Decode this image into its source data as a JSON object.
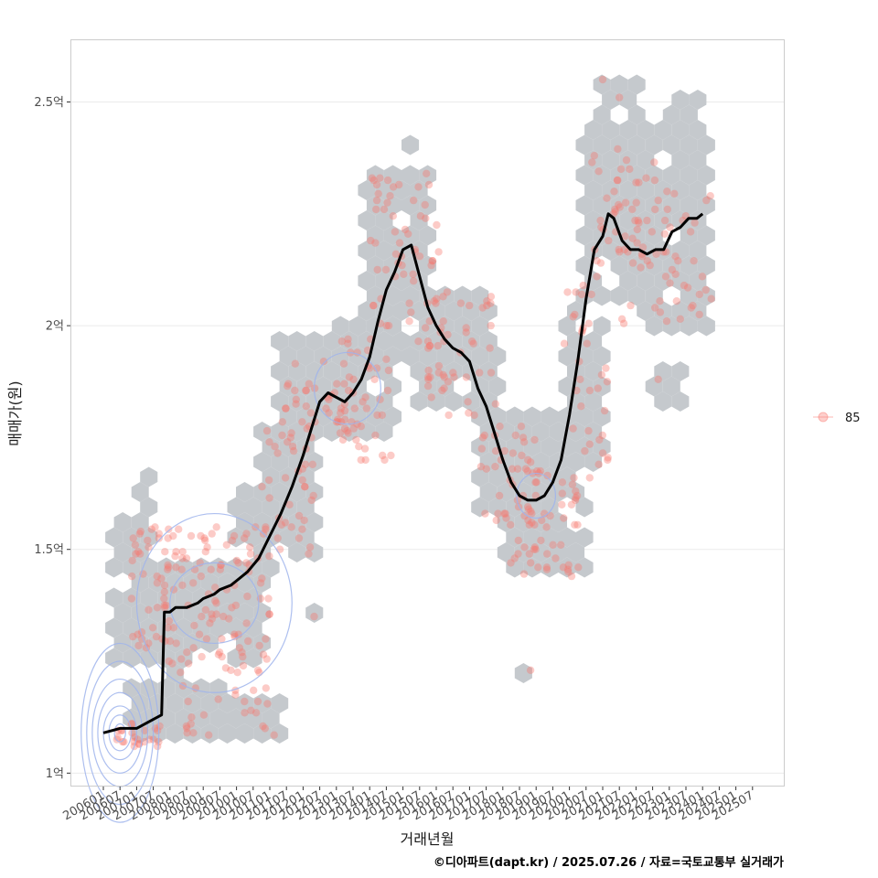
{
  "chart_data": {
    "type": "scatter",
    "ylabel": "매매가(원)",
    "xlabel": "거래년월",
    "caption": "©디아파트(dapt.kr) / 2025.07.26 / 자료=국토교통부 실거래가",
    "legend": {
      "placement": "right",
      "entries": [
        {
          "label": "85",
          "color": "#f8766d"
        }
      ]
    },
    "ylim": [
      0.97,
      2.64
    ],
    "xlim": [
      0,
      240
    ],
    "y_ticks": [
      {
        "value": 1.0,
        "label": "1억"
      },
      {
        "value": 1.5,
        "label": "1.5억"
      },
      {
        "value": 2.0,
        "label": "2억"
      },
      {
        "value": 2.5,
        "label": "2.5억"
      }
    ],
    "x_ticks": [
      "200601",
      "200607",
      "200701",
      "200707",
      "200801",
      "200807",
      "200901",
      "200907",
      "201001",
      "201007",
      "201101",
      "201107",
      "201201",
      "201207",
      "201301",
      "201307",
      "201401",
      "201407",
      "201501",
      "201507",
      "201601",
      "201607",
      "201701",
      "201707",
      "201801",
      "201807",
      "201901",
      "201907",
      "202001",
      "202007",
      "202101",
      "202107",
      "202201",
      "202207",
      "202301",
      "202307",
      "202401",
      "202407",
      "202501",
      "202507"
    ],
    "colors": {
      "hex": "#c5c9cd",
      "point": "#f8766d",
      "line": "#000000",
      "contour": "#9fb4ec",
      "grid": "#ebebeb",
      "panel_border": "#cccccc"
    },
    "trend_line": {
      "name": "moving average",
      "points": [
        [
          0,
          1.09
        ],
        [
          6,
          1.1
        ],
        [
          12,
          1.1
        ],
        [
          18,
          1.12
        ],
        [
          21,
          1.13
        ],
        [
          22,
          1.36
        ],
        [
          24,
          1.36
        ],
        [
          26,
          1.37
        ],
        [
          30,
          1.37
        ],
        [
          34,
          1.38
        ],
        [
          36,
          1.39
        ],
        [
          40,
          1.4
        ],
        [
          42,
          1.41
        ],
        [
          46,
          1.42
        ],
        [
          48,
          1.43
        ],
        [
          52,
          1.45
        ],
        [
          56,
          1.48
        ],
        [
          60,
          1.53
        ],
        [
          64,
          1.58
        ],
        [
          68,
          1.64
        ],
        [
          72,
          1.71
        ],
        [
          75,
          1.77
        ],
        [
          78,
          1.83
        ],
        [
          81,
          1.85
        ],
        [
          84,
          1.84
        ],
        [
          87,
          1.83
        ],
        [
          90,
          1.85
        ],
        [
          93,
          1.88
        ],
        [
          96,
          1.93
        ],
        [
          99,
          2.01
        ],
        [
          102,
          2.08
        ],
        [
          105,
          2.12
        ],
        [
          108,
          2.17
        ],
        [
          111,
          2.18
        ],
        [
          114,
          2.11
        ],
        [
          117,
          2.04
        ],
        [
          120,
          2.0
        ],
        [
          123,
          1.97
        ],
        [
          126,
          1.95
        ],
        [
          129,
          1.94
        ],
        [
          132,
          1.92
        ],
        [
          135,
          1.86
        ],
        [
          138,
          1.82
        ],
        [
          141,
          1.76
        ],
        [
          144,
          1.7
        ],
        [
          147,
          1.65
        ],
        [
          150,
          1.62
        ],
        [
          153,
          1.61
        ],
        [
          156,
          1.61
        ],
        [
          159,
          1.62
        ],
        [
          162,
          1.65
        ],
        [
          165,
          1.7
        ],
        [
          168,
          1.8
        ],
        [
          171,
          1.92
        ],
        [
          174,
          2.06
        ],
        [
          177,
          2.17
        ],
        [
          180,
          2.2
        ],
        [
          182,
          2.25
        ],
        [
          184,
          2.24
        ],
        [
          187,
          2.19
        ],
        [
          190,
          2.17
        ],
        [
          193,
          2.17
        ],
        [
          196,
          2.16
        ],
        [
          199,
          2.17
        ],
        [
          202,
          2.17
        ],
        [
          205,
          2.21
        ],
        [
          208,
          2.22
        ],
        [
          211,
          2.24
        ],
        [
          214,
          2.24
        ],
        [
          216,
          2.25
        ]
      ]
    },
    "contours": [
      {
        "cx": 6,
        "cy": 1.09,
        "rx": [
          2,
          4,
          6,
          8,
          10,
          12,
          14
        ],
        "ry": [
          0.02,
          0.04,
          0.06,
          0.09,
          0.12,
          0.16,
          0.2
        ]
      },
      {
        "cx": 40,
        "cy": 1.38,
        "rx": [
          16,
          28
        ],
        "ry": [
          0.09,
          0.2
        ]
      },
      {
        "cx": 88,
        "cy": 1.86,
        "rx": [
          12
        ],
        "ry": [
          0.08
        ]
      },
      {
        "cx": 156,
        "cy": 1.62,
        "rx": [
          7
        ],
        "ry": [
          0.05
        ]
      }
    ],
    "point_clusters": [
      {
        "x": [
          4,
          22
        ],
        "y": [
          1.04,
          1.12
        ],
        "n": 25
      },
      {
        "x": [
          10,
          24
        ],
        "y": [
          1.28,
          1.55
        ],
        "n": 40
      },
      {
        "x": [
          22,
          60
        ],
        "y": [
          1.22,
          1.55
        ],
        "n": 110
      },
      {
        "x": [
          28,
          62
        ],
        "y": [
          1.08,
          1.2
        ],
        "n": 25
      },
      {
        "x": [
          56,
          76
        ],
        "y": [
          1.5,
          1.8
        ],
        "n": 35
      },
      {
        "x": [
          64,
          92
        ],
        "y": [
          1.72,
          1.95
        ],
        "n": 45
      },
      {
        "x": [
          84,
          104
        ],
        "y": [
          1.7,
          1.98
        ],
        "n": 40
      },
      {
        "x": [
          96,
          122
        ],
        "y": [
          1.95,
          2.35
        ],
        "n": 60
      },
      {
        "x": [
          116,
          142
        ],
        "y": [
          1.8,
          2.08
        ],
        "n": 50
      },
      {
        "x": [
          136,
          158
        ],
        "y": [
          1.55,
          1.78
        ],
        "n": 40
      },
      {
        "x": [
          146,
          172
        ],
        "y": [
          1.44,
          1.68
        ],
        "n": 55
      },
      {
        "x": [
          166,
          182
        ],
        "y": [
          1.65,
          2.1
        ],
        "n": 35
      },
      {
        "x": [
          176,
          200
        ],
        "y": [
          2.1,
          2.4
        ],
        "n": 45
      },
      {
        "x": [
          186,
          220
        ],
        "y": [
          2.0,
          2.3
        ],
        "n": 50
      }
    ],
    "outlier_points": [
      [
        74,
        1.49
      ],
      [
        76,
        1.35
      ],
      [
        154,
        1.23
      ],
      [
        200,
        1.88
      ],
      [
        186,
        2.51
      ],
      [
        180,
        2.55
      ]
    ],
    "hex_regions": [
      {
        "x": [
          6,
          20
        ],
        "y": [
          1.46,
          1.55
        ]
      },
      {
        "x": [
          6,
          60
        ],
        "y": [
          1.26,
          1.46
        ]
      },
      {
        "x": [
          12,
          42
        ],
        "y": [
          1.08,
          1.2
        ]
      },
      {
        "x": [
          14,
          18
        ],
        "y": [
          1.6,
          1.66
        ]
      },
      {
        "x": [
          38,
          66
        ],
        "y": [
          1.08,
          1.16
        ]
      },
      {
        "x": [
          50,
          64
        ],
        "y": [
          1.45,
          1.62
        ]
      },
      {
        "x": [
          58,
          74
        ],
        "y": [
          1.5,
          1.75
        ]
      },
      {
        "x": [
          64,
          90
        ],
        "y": [
          1.75,
          1.95
        ]
      },
      {
        "x": [
          84,
          108
        ],
        "y": [
          1.75,
          2.0
        ]
      },
      {
        "x": [
          96,
          120
        ],
        "y": [
          1.95,
          2.35
        ]
      },
      {
        "x": [
          112,
          140
        ],
        "y": [
          1.88,
          2.05
        ]
      },
      {
        "x": [
          116,
          144
        ],
        "y": [
          1.8,
          1.95
        ]
      },
      {
        "x": [
          138,
          158
        ],
        "y": [
          1.58,
          1.8
        ]
      },
      {
        "x": [
          146,
          172
        ],
        "y": [
          1.44,
          1.62
        ]
      },
      {
        "x": [
          152,
          170
        ],
        "y": [
          1.62,
          1.8
        ]
      },
      {
        "x": [
          168,
          180
        ],
        "y": [
          1.7,
          2.05
        ]
      },
      {
        "x": [
          176,
          202
        ],
        "y": [
          2.05,
          2.45
        ]
      },
      {
        "x": [
          182,
          196
        ],
        "y": [
          2.4,
          2.55
        ]
      },
      {
        "x": [
          196,
          220
        ],
        "y": [
          2.0,
          2.3
        ]
      },
      {
        "x": [
          206,
          216
        ],
        "y": [
          2.3,
          2.5
        ]
      },
      {
        "x": [
          200,
          206
        ],
        "y": [
          1.82,
          1.9
        ]
      }
    ],
    "hex_singles": [
      [
        74,
        1.5
      ],
      [
        76,
        1.36
      ],
      [
        154,
        1.23
      ],
      [
        88,
        1.88
      ],
      [
        112,
        2.4
      ],
      [
        212,
        2.35
      ],
      [
        32,
        1.14
      ],
      [
        26,
        1.24
      ]
    ]
  }
}
